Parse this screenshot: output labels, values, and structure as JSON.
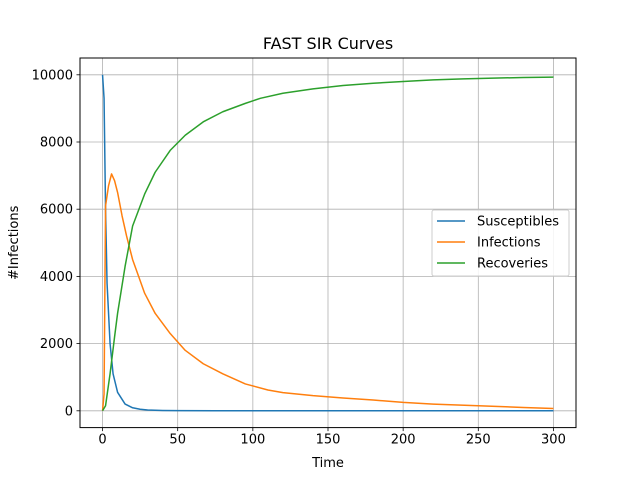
{
  "chart_data": {
    "type": "line",
    "title": "FAST SIR Curves",
    "xlabel": "Time",
    "ylabel": "#Infections",
    "xlim": [
      -15,
      315
    ],
    "ylim": [
      -500,
      10500
    ],
    "xticks": [
      0,
      50,
      100,
      150,
      200,
      250,
      300
    ],
    "yticks": [
      0,
      2000,
      4000,
      6000,
      8000,
      10000
    ],
    "grid": true,
    "legend_position": "center-right",
    "series": [
      {
        "name": "Susceptibles",
        "color": "#1f77b4",
        "points": [
          [
            0,
            10000
          ],
          [
            1,
            9300
          ],
          [
            2,
            6000
          ],
          [
            3,
            3800
          ],
          [
            5,
            2000
          ],
          [
            7,
            1100
          ],
          [
            10,
            550
          ],
          [
            15,
            200
          ],
          [
            20,
            90
          ],
          [
            25,
            45
          ],
          [
            30,
            25
          ],
          [
            40,
            10
          ],
          [
            50,
            5
          ],
          [
            75,
            2
          ],
          [
            100,
            1
          ],
          [
            150,
            0
          ],
          [
            200,
            0
          ],
          [
            250,
            0
          ],
          [
            300,
            0
          ]
        ]
      },
      {
        "name": "Infections",
        "color": "#ff7f0e",
        "points": [
          [
            0,
            0
          ],
          [
            1,
            500
          ],
          [
            2,
            6100
          ],
          [
            4,
            6700
          ],
          [
            6,
            7050
          ],
          [
            8,
            6850
          ],
          [
            10,
            6500
          ],
          [
            13,
            5800
          ],
          [
            16,
            5200
          ],
          [
            20,
            4500
          ],
          [
            24,
            4000
          ],
          [
            28,
            3500
          ],
          [
            35,
            2900
          ],
          [
            45,
            2300
          ],
          [
            55,
            1800
          ],
          [
            67,
            1400
          ],
          [
            80,
            1100
          ],
          [
            95,
            800
          ],
          [
            110,
            620
          ],
          [
            120,
            540
          ],
          [
            140,
            450
          ],
          [
            160,
            380
          ],
          [
            180,
            320
          ],
          [
            200,
            250
          ],
          [
            220,
            200
          ],
          [
            250,
            150
          ],
          [
            280,
            100
          ],
          [
            300,
            70
          ]
        ]
      },
      {
        "name": "Recoveries",
        "color": "#2ca02c",
        "points": [
          [
            0,
            0
          ],
          [
            2,
            150
          ],
          [
            5,
            1100
          ],
          [
            8,
            2200
          ],
          [
            10,
            2900
          ],
          [
            15,
            4300
          ],
          [
            20,
            5500
          ],
          [
            28,
            6450
          ],
          [
            35,
            7100
          ],
          [
            45,
            7750
          ],
          [
            55,
            8200
          ],
          [
            67,
            8600
          ],
          [
            80,
            8900
          ],
          [
            95,
            9150
          ],
          [
            105,
            9300
          ],
          [
            120,
            9450
          ],
          [
            140,
            9580
          ],
          [
            160,
            9680
          ],
          [
            180,
            9750
          ],
          [
            200,
            9800
          ],
          [
            220,
            9850
          ],
          [
            240,
            9880
          ],
          [
            260,
            9900
          ],
          [
            280,
            9920
          ],
          [
            300,
            9930
          ]
        ]
      }
    ]
  }
}
